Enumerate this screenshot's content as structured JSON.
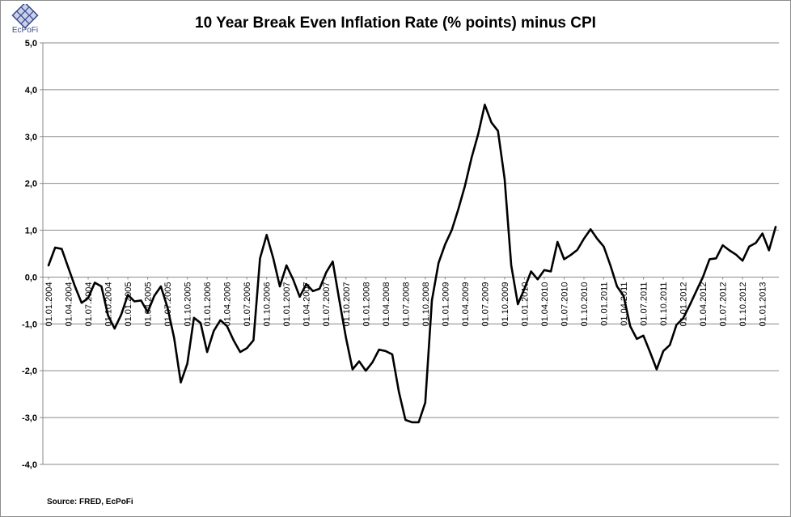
{
  "brand": {
    "logo_text": "EcPoFi",
    "logo_color": "#3b4a8a"
  },
  "source_note": "Source: FRED,  EcPoFi",
  "chart_data": {
    "type": "line",
    "title": "10 Year Break Even Inflation Rate (% points) minus CPI",
    "xlabel": "",
    "ylabel": "",
    "ylim": [
      -4,
      5
    ],
    "yticks": [
      5,
      4,
      3,
      2,
      1,
      0,
      -1,
      -2,
      -3,
      -4
    ],
    "ytick_labels": [
      "5,0",
      "4,0",
      "3,0",
      "2,0",
      "1,0",
      "0,0",
      "-1,0",
      "-2,0",
      "-3,0",
      "-4,0"
    ],
    "grid": true,
    "line_color": "#000000",
    "x_tick_labels": [
      "01.01.2004",
      "01.04.2004",
      "01.07.2004",
      "01.10.2004",
      "01.01.2005",
      "01.04.2005",
      "01.07.2005",
      "01.10.2005",
      "01.01.2006",
      "01.04.2006",
      "01.07.2006",
      "01.10.2006",
      "01.01.2007",
      "01.04.2007",
      "01.07.2007",
      "01.10.2007",
      "01.01.2008",
      "01.04.2008",
      "01.07.2008",
      "01.10.2008",
      "01.01.2009",
      "01.04.2009",
      "01.07.2009",
      "01.10.2009",
      "01.01.2010",
      "01.04.2010",
      "01.07.2010",
      "01.10.2010",
      "01.01.2011",
      "01.04.2011",
      "01.07.2011",
      "01.10.2011",
      "01.01.2012",
      "01.04.2012",
      "01.07.2012",
      "01.10.2012",
      "01.01.2013"
    ],
    "series": [
      {
        "name": "10 Year Break Even Inflation Rate minus CPI",
        "values": [
          0.25,
          0.63,
          0.6,
          0.2,
          -0.2,
          -0.55,
          -0.45,
          -0.12,
          -0.2,
          -0.82,
          -1.1,
          -0.8,
          -0.38,
          -0.52,
          -0.5,
          -0.75,
          -0.4,
          -0.2,
          -0.65,
          -1.3,
          -2.25,
          -1.85,
          -0.87,
          -0.98,
          -1.6,
          -1.15,
          -0.92,
          -1.05,
          -1.35,
          -1.6,
          -1.52,
          -1.35,
          0.4,
          0.9,
          0.4,
          -0.2,
          0.25,
          -0.05,
          -0.42,
          -0.15,
          -0.3,
          -0.25,
          0.1,
          0.33,
          -0.5,
          -1.3,
          -1.97,
          -1.8,
          -2.0,
          -1.82,
          -1.55,
          -1.58,
          -1.65,
          -2.45,
          -3.05,
          -3.1,
          -3.1,
          -2.68,
          -0.5,
          0.3,
          0.7,
          1.0,
          1.45,
          1.95,
          2.55,
          3.05,
          3.68,
          3.3,
          3.12,
          2.1,
          0.25,
          -0.58,
          -0.25,
          0.12,
          -0.05,
          0.15,
          0.12,
          0.75,
          0.38,
          0.47,
          0.58,
          0.82,
          1.02,
          0.82,
          0.65,
          0.25,
          -0.2,
          -0.4,
          -1.05,
          -1.32,
          -1.25,
          -1.6,
          -1.97,
          -1.58,
          -1.45,
          -1.02,
          -0.88,
          -0.6,
          -0.3,
          0.0,
          0.38,
          0.4,
          0.68,
          0.57,
          0.48,
          0.35,
          0.65,
          0.73,
          0.93,
          0.57,
          1.07
        ]
      }
    ]
  }
}
